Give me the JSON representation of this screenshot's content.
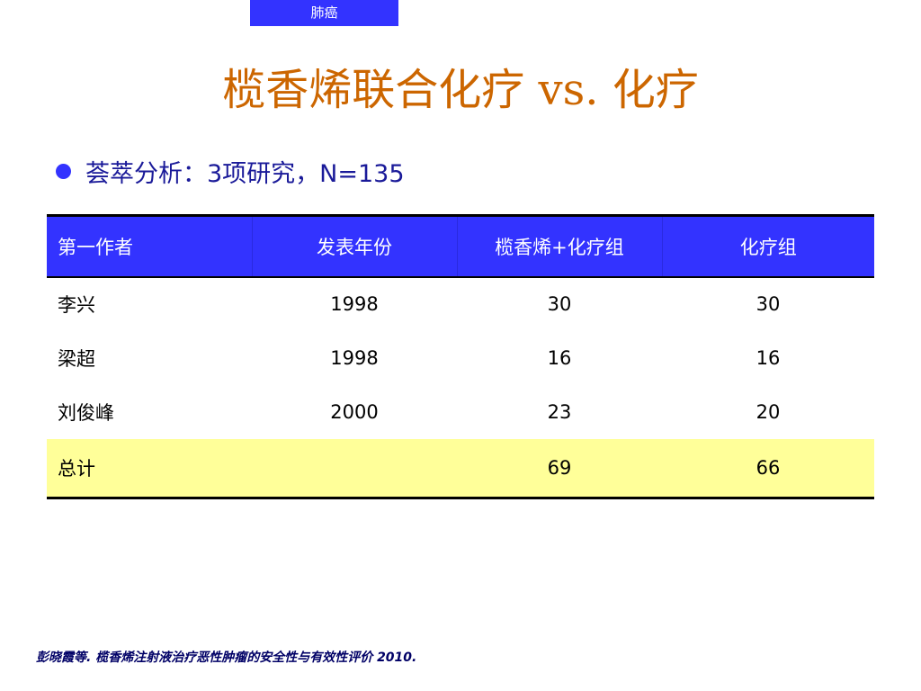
{
  "tag": "肺癌",
  "title": "榄香烯联合化疗 vs. 化疗",
  "bullet": "荟萃分析：3项研究，N=135",
  "colors": {
    "accent_blue": "#3333ff",
    "title_orange": "#cc6600",
    "total_row_yellow": "#ffff99"
  },
  "table": {
    "headers": [
      "第一作者",
      "发表年份",
      "榄香烯+化疗组",
      "化疗组"
    ],
    "rows": [
      [
        "李兴",
        "1998",
        "30",
        "30"
      ],
      [
        "梁超",
        "1998",
        "16",
        "16"
      ],
      [
        "刘俊峰",
        "2000",
        "23",
        "20"
      ]
    ],
    "total": [
      "总计",
      "",
      "69",
      "66"
    ]
  },
  "footnote": "彭晓霞等. 榄香烯注射液治疗恶性肿瘤的安全性与有效性评价 2010."
}
